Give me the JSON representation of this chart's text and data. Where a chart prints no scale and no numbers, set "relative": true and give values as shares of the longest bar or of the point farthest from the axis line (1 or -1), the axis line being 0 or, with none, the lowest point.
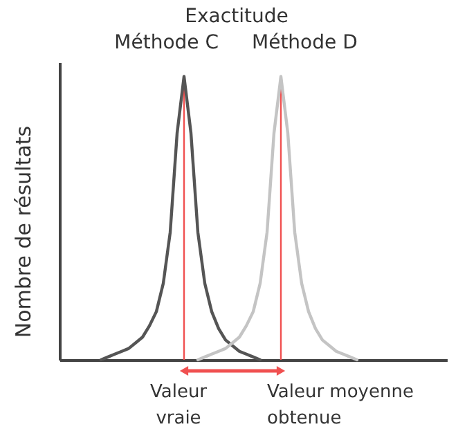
{
  "chart_data": {
    "type": "line",
    "title": "Exactitude",
    "ylabel": "Nombre de résultats",
    "relative": true,
    "grid": false,
    "categories": [
      null,
      null,
      null,
      null,
      null,
      null,
      null,
      null,
      null,
      null,
      null,
      null,
      null,
      null,
      null,
      null,
      null,
      null,
      null,
      null,
      null,
      null,
      null,
      null,
      null,
      null,
      null,
      null,
      null,
      null,
      null,
      null,
      null,
      null,
      null,
      null,
      null,
      null,
      null,
      null,
      null,
      null,
      null,
      null,
      null,
      null,
      null,
      null,
      null,
      null,
      null,
      null,
      null,
      null,
      null,
      null,
      null
    ],
    "series": [
      {
        "name": "Méthode C",
        "color": "#555555",
        "values": [
          null,
          null,
          null,
          null,
          null,
          null,
          0,
          0.01,
          0.02,
          0.03,
          0.04,
          0.06,
          0.08,
          0.12,
          0.17,
          0.27,
          0.45,
          0.8,
          1,
          0.8,
          0.45,
          0.27,
          0.17,
          0.11,
          0.07,
          0.05,
          0.03,
          0.02,
          0.01,
          0,
          null,
          null,
          null,
          null,
          null,
          null,
          null,
          null,
          null,
          null,
          null,
          null,
          null,
          null,
          null,
          null,
          null,
          null,
          null,
          null,
          null,
          null,
          null,
          null,
          null,
          null,
          null
        ]
      },
      {
        "name": "Méthode D",
        "color": "#c4c4c4",
        "values": [
          null,
          null,
          null,
          null,
          null,
          null,
          null,
          null,
          null,
          null,
          null,
          null,
          null,
          null,
          null,
          null,
          null,
          null,
          null,
          null,
          0,
          0.01,
          0.02,
          0.03,
          0.04,
          0.06,
          0.08,
          0.12,
          0.17,
          0.27,
          0.45,
          0.8,
          1,
          0.8,
          0.45,
          0.27,
          0.17,
          0.11,
          0.07,
          0.05,
          0.03,
          0.02,
          0.01,
          0,
          null,
          null,
          null,
          null,
          null,
          null,
          null,
          null,
          null,
          null,
          null,
          null,
          null
        ]
      }
    ],
    "annotations": [
      "Valeur vraie",
      "Valeur moyenne obtenue"
    ]
  }
}
